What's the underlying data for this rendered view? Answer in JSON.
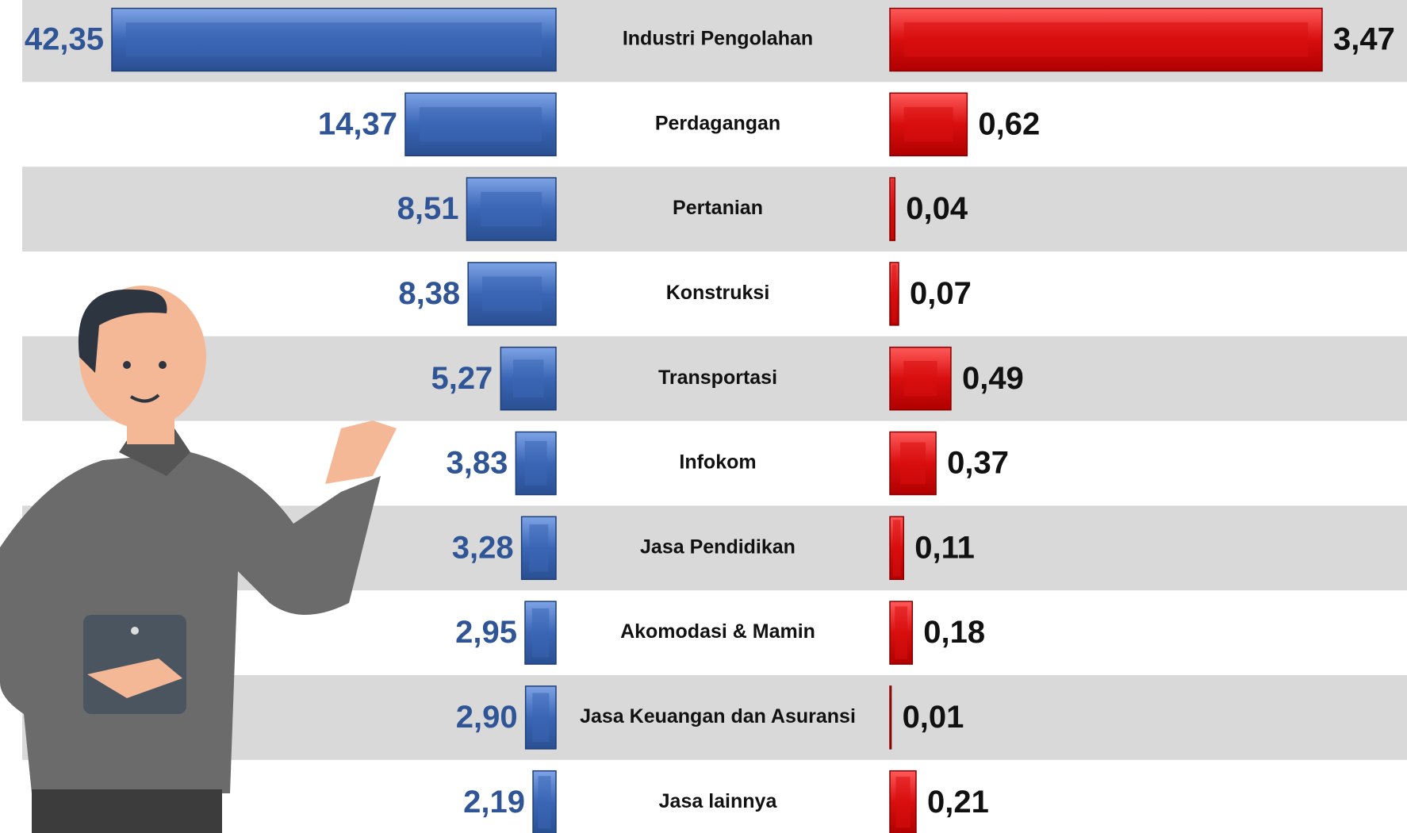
{
  "chart_data": {
    "type": "butterfly",
    "categories": [
      "Industri Pengolahan",
      "Perdagangan",
      "Pertanian",
      "Konstruksi",
      "Transportasi",
      "Infokom",
      "Jasa Pendidikan",
      "Akomodasi & Mamin",
      "Jasa Keuangan dan Asuransi",
      "Jasa lainnya"
    ],
    "series": [
      {
        "color": "#3a66b5",
        "side": "left",
        "values": [
          42.35,
          14.37,
          8.51,
          8.38,
          5.27,
          3.83,
          3.28,
          2.95,
          2.9,
          2.19
        ],
        "value_labels": [
          "42,35",
          "14,37",
          "8,51",
          "8,38",
          "5,27",
          "3,83",
          "3,28",
          "2,95",
          "2,90",
          "2,19"
        ]
      },
      {
        "color": "#d90e0e",
        "side": "right",
        "values": [
          3.47,
          0.62,
          0.04,
          0.07,
          0.49,
          0.37,
          0.11,
          0.18,
          0.01,
          0.21
        ],
        "value_labels": [
          "3,47",
          "0,62",
          "0,04",
          "0,07",
          "0,49",
          "0,37",
          "0,11",
          "0,18",
          "0,01",
          "0,21"
        ]
      }
    ]
  }
}
